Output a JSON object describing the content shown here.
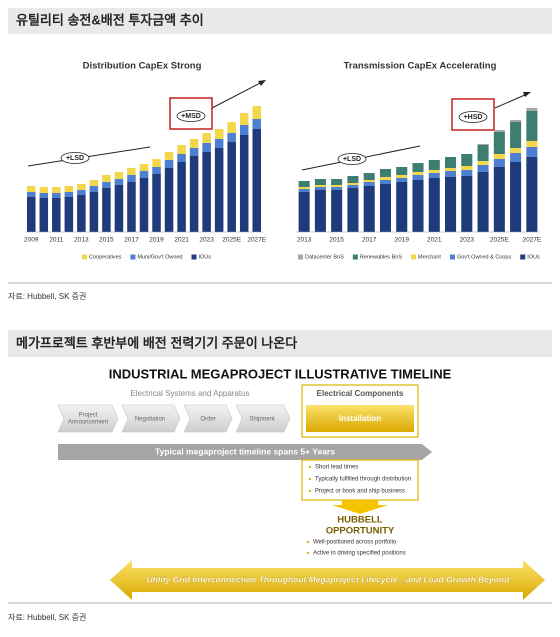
{
  "sections": [
    {
      "header": "유틸리티 송전&배전 투자금액 추이",
      "source": "자료: Hubbell, SK 증권"
    },
    {
      "header": "메가프로젝트 후반부에 배전 전력기기 주문이 나온다",
      "source": "자료: Hubbell, SK 증권"
    }
  ],
  "chart_data": [
    {
      "type": "bar",
      "stacked": true,
      "title": "Distribution CapEx Strong",
      "categories": [
        "2009",
        null,
        "2011",
        null,
        "2013",
        null,
        "2015",
        null,
        "2017",
        null,
        "2019",
        null,
        "2021",
        null,
        "2023",
        null,
        "2025E",
        null,
        "2027E"
      ],
      "series": [
        {
          "name": "Cooperatives",
          "color": "#f2d64b",
          "values": [
            6,
            6,
            6,
            6,
            6,
            6,
            7,
            7,
            7,
            7,
            8,
            8,
            9,
            9,
            10,
            10,
            11,
            12,
            13
          ]
        },
        {
          "name": "Muni/Gov't Owned",
          "color": "#4f7fd0",
          "values": [
            5,
            5,
            5,
            5,
            5,
            6,
            6,
            6,
            7,
            7,
            7,
            8,
            8,
            8,
            9,
            9,
            9,
            10,
            10
          ]
        },
        {
          "name": "IOUs",
          "color": "#1f3b7c",
          "values": [
            35,
            34,
            34,
            35,
            37,
            40,
            44,
            47,
            50,
            54,
            58,
            64,
            70,
            76,
            80,
            84,
            90,
            97,
            103
          ]
        }
      ],
      "annotations": [
        "+LSD",
        "+MSD"
      ]
    },
    {
      "type": "bar",
      "stacked": true,
      "title": "Transmission CapEx Accelerating",
      "categories": [
        "2013",
        null,
        "2015",
        null,
        "2017",
        null,
        "2019",
        null,
        "2021",
        null,
        "2023",
        null,
        "2025E",
        null,
        "2027E"
      ],
      "series": [
        {
          "name": "Datacenter BoS",
          "color": "#a6a6a6",
          "values": [
            0,
            0,
            0,
            0,
            0,
            0,
            0,
            0,
            0,
            0,
            0,
            1,
            2,
            2,
            3
          ]
        },
        {
          "name": "Renewables BoS",
          "color": "#3d7d72",
          "values": [
            6,
            6,
            6,
            7,
            7,
            8,
            8,
            9,
            10,
            11,
            12,
            16,
            22,
            26,
            30
          ]
        },
        {
          "name": "Merchant",
          "color": "#f2d64b",
          "values": [
            2,
            2,
            2,
            2,
            2,
            3,
            3,
            3,
            3,
            3,
            4,
            4,
            5,
            5,
            6
          ]
        },
        {
          "name": "Gov't Owned & Coops",
          "color": "#4f7fd0",
          "values": [
            3,
            3,
            3,
            3,
            4,
            4,
            4,
            5,
            5,
            6,
            6,
            7,
            8,
            9,
            10
          ]
        },
        {
          "name": "IOUs",
          "color": "#1f3b7c",
          "values": [
            40,
            42,
            42,
            44,
            46,
            48,
            50,
            52,
            54,
            55,
            56,
            60,
            65,
            70,
            75
          ]
        }
      ],
      "annotations": [
        "+LSD",
        "+HSD"
      ]
    }
  ],
  "diagram": {
    "title": "INDUSTRIAL MEGAPROJECT ILLUSTRATIVE TIMELINE",
    "left_heading": "Electrical Systems and Apparatus",
    "right_heading": "Electrical Components",
    "steps": [
      [
        "Project",
        "Announcement"
      ],
      [
        "Negotiation"
      ],
      [
        "Order"
      ],
      [
        "Shipment"
      ]
    ],
    "installation": "Installation",
    "timeline": "Typical megaproject timeline spans 5+ Years",
    "component_bullets": [
      "Short lead times",
      "Typically fulfilled through distribution",
      "Project or book and ship business"
    ],
    "opportunity_title": [
      "HUBBELL",
      "OPPORTUNITY"
    ],
    "opportunity_bullets": [
      "Well-positioned across portfolio",
      "Active in driving specified positions"
    ],
    "banner": "Utility Grid Interconnection Throughout Megaproject Lifecycle…and Load Growth Beyond"
  }
}
